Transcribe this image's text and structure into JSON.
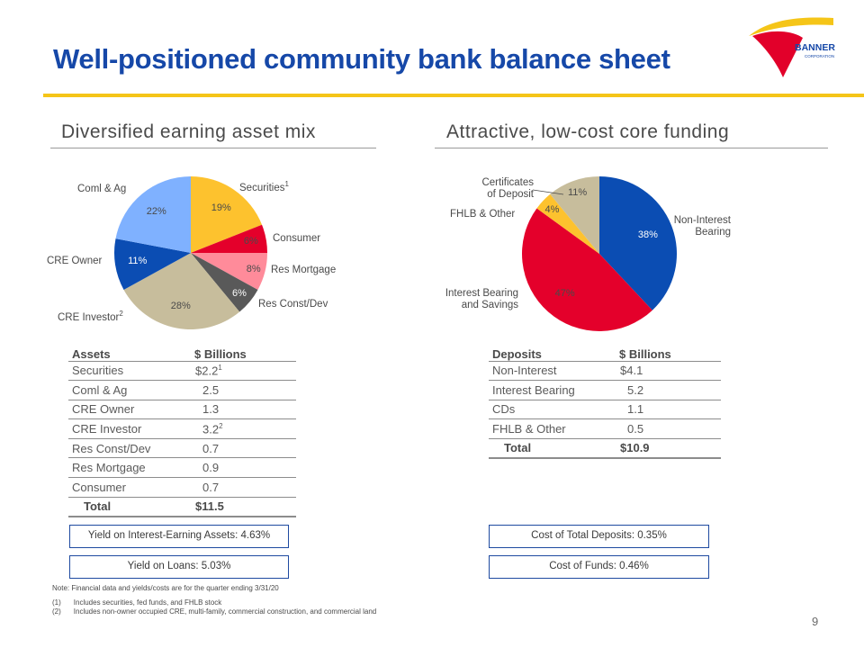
{
  "header": {
    "title": "Well-positioned community bank balance sheet",
    "logo_text": "BANNER",
    "logo_subtext": "CORPORATION"
  },
  "left": {
    "heading": "Diversified earning asset mix",
    "pie": {
      "labels": {
        "securities": "Securities",
        "securities_note": "1",
        "consumer": "Consumer",
        "res_mortgage": "Res Mortgage",
        "res_const": "Res Const/Dev",
        "cre_investor": "CRE Investor",
        "cre_investor_note": "2",
        "cre_owner": "CRE Owner",
        "coml_ag": "Coml & Ag"
      }
    },
    "table": {
      "col1": "Assets",
      "col2": "$ Billions",
      "rows": [
        {
          "name": "Securities",
          "value": "$2.2",
          "note": "1"
        },
        {
          "name": "Coml & Ag",
          "value": "2.5",
          "note": ""
        },
        {
          "name": "CRE Owner",
          "value": "1.3",
          "note": ""
        },
        {
          "name": "CRE Investor",
          "value": "3.2",
          "note": "2"
        },
        {
          "name": "Res Const/Dev",
          "value": "0.7",
          "note": ""
        },
        {
          "name": "Res Mortgage",
          "value": "0.9",
          "note": ""
        },
        {
          "name": "Consumer",
          "value": "0.7",
          "note": ""
        }
      ],
      "total_label": "Total",
      "total_value": "$11.5"
    },
    "box1": "Yield on Interest-Earning Assets: 4.63%",
    "box2": "Yield on Loans: 5.03%"
  },
  "right": {
    "heading": "Attractive, low-cost core funding",
    "pie": {
      "labels": {
        "cds_line1": "Certificates",
        "cds_line2": "of Deposit",
        "fhlb": "FHLB & Other",
        "noninterest_line1": "Non-Interest",
        "noninterest_line2": "Bearing",
        "interest_line1": "Interest Bearing",
        "interest_line2": "and Savings"
      }
    },
    "table": {
      "col1": "Deposits",
      "col2": "$ Billions",
      "rows": [
        {
          "name": "Non-Interest",
          "value": "$4.1"
        },
        {
          "name": "Interest Bearing",
          "value": "5.2"
        },
        {
          "name": "CDs",
          "value": "1.1"
        },
        {
          "name": "FHLB & Other",
          "value": "0.5"
        }
      ],
      "total_label": "Total",
      "total_value": "$10.9"
    },
    "box1": "Cost of Total Deposits: 0.35%",
    "box2": "Cost of Funds: 0.46%"
  },
  "notes": {
    "main": "Note: Financial data and yields/costs are for the quarter ending 3/31/20",
    "fn1_mark": "(1)",
    "fn1": "Includes securities, fed funds, and FHLB stock",
    "fn2_mark": "(2)",
    "fn2": "Includes non-owner occupied CRE, multi-family, commercial construction, and commercial land"
  },
  "page_number": "9",
  "colors": {
    "title": "#1648a8",
    "accent_rule": "#f5c518",
    "box_border": "#1e4aa0",
    "logo_red": "#e2002a",
    "logo_yellow": "#f5c518"
  },
  "chart_data": [
    {
      "type": "pie",
      "title": "Diversified earning asset mix",
      "start_angle_deg": 0,
      "series": [
        {
          "name": "Securities",
          "value": 19,
          "color": "#fdc22e",
          "text_color": "#4a4a4a",
          "pct_label": "19%"
        },
        {
          "name": "Consumer",
          "value": 6,
          "color": "#e4002b",
          "text_color": "#4a4a4a",
          "pct_label": "6%"
        },
        {
          "name": "Res Mortgage",
          "value": 8,
          "color": "#ff8b9a",
          "text_color": "#4a4a4a",
          "pct_label": "8%"
        },
        {
          "name": "Res Const/Dev",
          "value": 6,
          "color": "#595959",
          "text_color": "#ffffff",
          "pct_label": "6%"
        },
        {
          "name": "CRE Investor",
          "value": 28,
          "color": "#c7bd9c",
          "text_color": "#4a4a4a",
          "pct_label": "28%"
        },
        {
          "name": "CRE Owner",
          "value": 11,
          "color": "#0b4db3",
          "text_color": "#ffffff",
          "pct_label": "11%"
        },
        {
          "name": "Coml & Ag",
          "value": 22,
          "color": "#7fb1ff",
          "text_color": "#4a4a4a",
          "pct_label": "22%"
        }
      ]
    },
    {
      "type": "pie",
      "title": "Attractive, low-cost core funding",
      "start_angle_deg": 0,
      "series": [
        {
          "name": "Non-Interest Bearing",
          "value": 38,
          "color": "#0b4db3",
          "text_color": "#ffffff",
          "pct_label": "38%"
        },
        {
          "name": "Interest Bearing and Savings",
          "value": 47,
          "color": "#e4002b",
          "text_color": "#4a4a4a",
          "pct_label": "47%"
        },
        {
          "name": "FHLB & Other",
          "value": 4,
          "color": "#fdc22e",
          "text_color": "#4a4a4a",
          "pct_label": "4%"
        },
        {
          "name": "Certificates of Deposit",
          "value": 11,
          "color": "#c7bd9c",
          "text_color": "#4a4a4a",
          "pct_label": "11%"
        }
      ]
    }
  ]
}
